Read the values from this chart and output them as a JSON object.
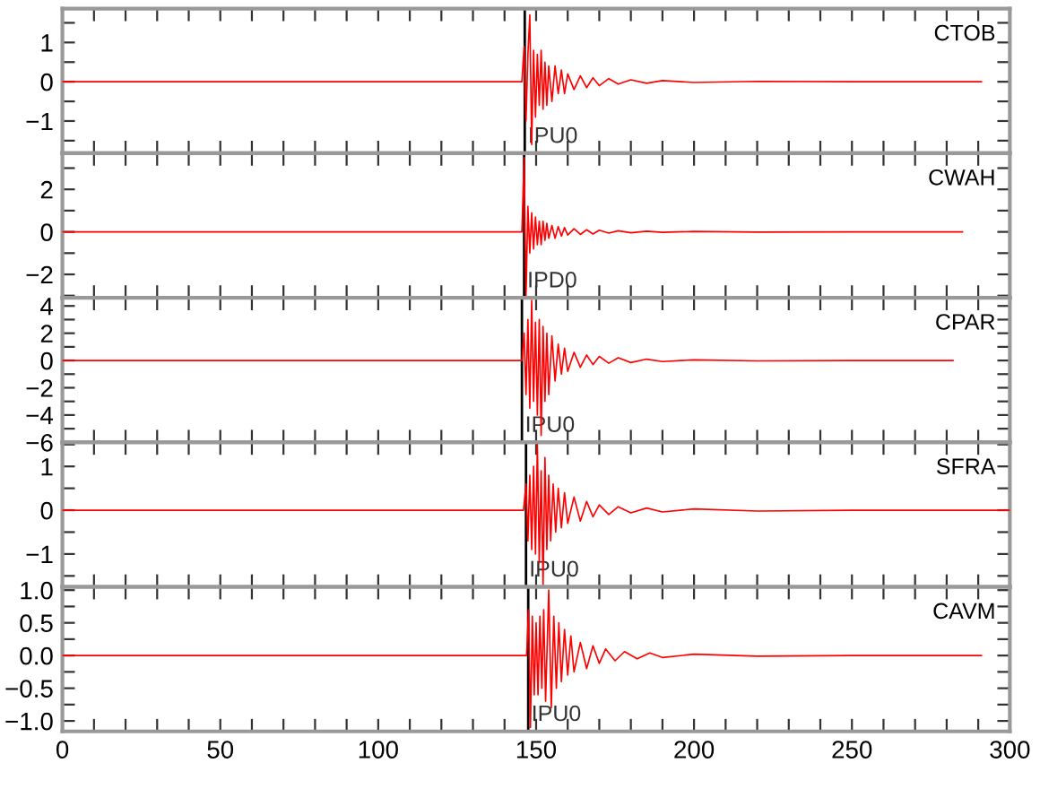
{
  "chart_data": [
    {
      "type": "line",
      "x": [
        0,
        30,
        60,
        90,
        120,
        145.5,
        146.2,
        146.8,
        147.4,
        148,
        148.6,
        149.2,
        149.8,
        150.4,
        151,
        151.6,
        152.2,
        152.8,
        153.4,
        154,
        155,
        156,
        157,
        158,
        159,
        160,
        162,
        164,
        166,
        168,
        170,
        173,
        176,
        180,
        185,
        190,
        200,
        220,
        250,
        291
      ],
      "series": [
        {
          "color": "#ff0000",
          "values": [
            0,
            0,
            0,
            0,
            0,
            0,
            0.9,
            -1.0,
            0.7,
            1.7,
            -1.6,
            0.8,
            -0.9,
            0.7,
            -0.6,
            0.8,
            -0.7,
            0.5,
            -0.6,
            0.4,
            -0.5,
            0.4,
            -0.3,
            0.3,
            -0.3,
            0.2,
            -0.2,
            0.15,
            -0.15,
            0.1,
            -0.1,
            0.08,
            -0.06,
            0.05,
            -0.04,
            0.03,
            -0.02,
            0.01,
            0,
            0
          ]
        }
      ],
      "xlim": [
        0,
        300
      ],
      "xticks": [
        {
          "value": 0,
          "label": null
        },
        {
          "value": 10,
          "label": null
        },
        {
          "value": 20,
          "label": null
        },
        {
          "value": 30,
          "label": null
        },
        {
          "value": 40,
          "label": null
        },
        {
          "value": 50,
          "label": null
        },
        {
          "value": 60,
          "label": null
        },
        {
          "value": 70,
          "label": null
        },
        {
          "value": 80,
          "label": null
        },
        {
          "value": 90,
          "label": null
        },
        {
          "value": 100,
          "label": null
        },
        {
          "value": 110,
          "label": null
        },
        {
          "value": 120,
          "label": null
        },
        {
          "value": 130,
          "label": null
        },
        {
          "value": 140,
          "label": null
        },
        {
          "value": 150,
          "label": null
        },
        {
          "value": 160,
          "label": null
        },
        {
          "value": 170,
          "label": null
        },
        {
          "value": 180,
          "label": null
        },
        {
          "value": 190,
          "label": null
        },
        {
          "value": 200,
          "label": null
        },
        {
          "value": 210,
          "label": null
        },
        {
          "value": 220,
          "label": null
        },
        {
          "value": 230,
          "label": null
        },
        {
          "value": 240,
          "label": null
        },
        {
          "value": 250,
          "label": null
        },
        {
          "value": 260,
          "label": null
        },
        {
          "value": 270,
          "label": null
        },
        {
          "value": 280,
          "label": null
        },
        {
          "value": 290,
          "label": null
        },
        {
          "value": 300,
          "label": null
        }
      ],
      "ylim": [
        -1.82,
        1.86
      ],
      "yticks": [
        {
          "value": -1.5,
          "label": null
        },
        {
          "value": -1,
          "label": "−1"
        },
        {
          "value": -0.5,
          "label": null
        },
        0,
        {
          "value": 0.5,
          "label": null
        },
        1,
        {
          "value": 1.5,
          "label": null
        }
      ],
      "tick_labels": "y",
      "grid": false,
      "legend": false,
      "annotations": [
        "CTOB"
      ],
      "ref_lines": [
        {
          "axis": "x",
          "value": 146.4,
          "label": "IPU0",
          "color": "#000000"
        }
      ]
    },
    {
      "type": "line",
      "x": [
        0,
        30,
        60,
        90,
        120,
        145.5,
        146.2,
        146.8,
        147.4,
        148,
        148.6,
        149.2,
        149.8,
        150.4,
        151,
        151.6,
        152.2,
        152.8,
        153.4,
        154,
        155,
        156,
        157,
        158,
        159,
        160,
        162,
        164,
        166,
        168,
        170,
        173,
        176,
        180,
        185,
        190,
        200,
        220,
        250,
        285
      ],
      "series": [
        {
          "color": "#ff0000",
          "values": [
            0,
            0,
            0,
            0,
            0,
            0,
            3.5,
            -3.0,
            1.2,
            -1.0,
            0.9,
            -0.8,
            0.7,
            -0.6,
            0.5,
            -0.6,
            0.5,
            -0.4,
            0.4,
            -0.3,
            0.3,
            -0.3,
            0.25,
            -0.2,
            0.2,
            -0.15,
            0.15,
            -0.12,
            0.1,
            -0.1,
            0.08,
            -0.06,
            0.05,
            -0.04,
            0.03,
            -0.02,
            0.02,
            -0.01,
            0,
            0
          ]
        }
      ],
      "xlim": [
        0,
        300
      ],
      "xticks": [
        {
          "value": 0,
          "label": null
        },
        {
          "value": 10,
          "label": null
        },
        {
          "value": 20,
          "label": null
        },
        {
          "value": 30,
          "label": null
        },
        {
          "value": 40,
          "label": null
        },
        {
          "value": 50,
          "label": null
        },
        {
          "value": 60,
          "label": null
        },
        {
          "value": 70,
          "label": null
        },
        {
          "value": 80,
          "label": null
        },
        {
          "value": 90,
          "label": null
        },
        {
          "value": 100,
          "label": null
        },
        {
          "value": 110,
          "label": null
        },
        {
          "value": 120,
          "label": null
        },
        {
          "value": 130,
          "label": null
        },
        {
          "value": 140,
          "label": null
        },
        {
          "value": 150,
          "label": null
        },
        {
          "value": 160,
          "label": null
        },
        {
          "value": 170,
          "label": null
        },
        {
          "value": 180,
          "label": null
        },
        {
          "value": 190,
          "label": null
        },
        {
          "value": 200,
          "label": null
        },
        {
          "value": 210,
          "label": null
        },
        {
          "value": 220,
          "label": null
        },
        {
          "value": 230,
          "label": null
        },
        {
          "value": 240,
          "label": null
        },
        {
          "value": 250,
          "label": null
        },
        {
          "value": 260,
          "label": null
        },
        {
          "value": 270,
          "label": null
        },
        {
          "value": 280,
          "label": null
        },
        {
          "value": 290,
          "label": null
        },
        {
          "value": 300,
          "label": null
        }
      ],
      "ylim": [
        -3.1,
        3.7
      ],
      "yticks": [
        {
          "value": -3,
          "label": null
        },
        {
          "value": -2,
          "label": "−2"
        },
        {
          "value": -1,
          "label": null
        },
        0,
        {
          "value": 1,
          "label": null
        },
        2,
        {
          "value": 3,
          "label": null
        }
      ],
      "tick_labels": "y",
      "grid": false,
      "legend": false,
      "annotations": [
        "CWAH"
      ],
      "ref_lines": [
        {
          "axis": "x",
          "value": 146.2,
          "label": "IPD0",
          "color": "#000000"
        }
      ]
    },
    {
      "type": "line",
      "x": [
        0,
        30,
        60,
        90,
        120,
        145.5,
        146.2,
        146.8,
        147.4,
        148,
        148.6,
        149.2,
        149.8,
        150.4,
        151,
        151.6,
        152.2,
        152.8,
        153.4,
        154,
        155,
        156,
        157,
        158,
        159,
        160,
        162,
        164,
        166,
        168,
        170,
        173,
        176,
        180,
        185,
        190,
        200,
        220,
        250,
        282
      ],
      "series": [
        {
          "color": "#ff0000",
          "values": [
            0,
            0,
            0,
            0,
            0,
            0,
            2.0,
            -2.5,
            3.0,
            -3.5,
            4.4,
            -3.0,
            2.8,
            -4.0,
            3.0,
            -5.5,
            2.5,
            -3.0,
            2.0,
            -2.5,
            1.8,
            -1.5,
            1.2,
            -1.0,
            0.9,
            -0.8,
            0.6,
            -0.5,
            0.4,
            -0.3,
            0.3,
            -0.2,
            0.2,
            -0.15,
            0.1,
            -0.08,
            0.05,
            -0.03,
            0,
            0
          ]
        }
      ],
      "xlim": [
        0,
        300
      ],
      "xticks": [
        {
          "value": 0,
          "label": null
        },
        {
          "value": 10,
          "label": null
        },
        {
          "value": 20,
          "label": null
        },
        {
          "value": 30,
          "label": null
        },
        {
          "value": 40,
          "label": null
        },
        {
          "value": 50,
          "label": null
        },
        {
          "value": 60,
          "label": null
        },
        {
          "value": 70,
          "label": null
        },
        {
          "value": 80,
          "label": null
        },
        {
          "value": 90,
          "label": null
        },
        {
          "value": 100,
          "label": null
        },
        {
          "value": 110,
          "label": null
        },
        {
          "value": 120,
          "label": null
        },
        {
          "value": 130,
          "label": null
        },
        {
          "value": 140,
          "label": null
        },
        {
          "value": 150,
          "label": null
        },
        {
          "value": 160,
          "label": null
        },
        {
          "value": 170,
          "label": null
        },
        {
          "value": 180,
          "label": null
        },
        {
          "value": 190,
          "label": null
        },
        {
          "value": 200,
          "label": null
        },
        {
          "value": 210,
          "label": null
        },
        {
          "value": 220,
          "label": null
        },
        {
          "value": 230,
          "label": null
        },
        {
          "value": 240,
          "label": null
        },
        {
          "value": 250,
          "label": null
        },
        {
          "value": 260,
          "label": null
        },
        {
          "value": 270,
          "label": null
        },
        {
          "value": 280,
          "label": null
        },
        {
          "value": 290,
          "label": null
        },
        {
          "value": 300,
          "label": null
        }
      ],
      "ylim": [
        -6,
        4.6
      ],
      "yticks": [
        {
          "value": -6,
          "label": "−6"
        },
        {
          "value": -5,
          "label": null
        },
        {
          "value": -4,
          "label": "−4"
        },
        {
          "value": -3,
          "label": null
        },
        {
          "value": -2,
          "label": "−2"
        },
        {
          "value": -1,
          "label": null
        },
        0,
        {
          "value": 1,
          "label": null
        },
        2,
        {
          "value": 3,
          "label": null
        },
        4
      ],
      "tick_labels": "y",
      "grid": false,
      "legend": false,
      "annotations": [
        "CPAR"
      ],
      "ref_lines": [
        {
          "axis": "x",
          "value": 145.5,
          "label": "IPU0",
          "color": "#000000"
        }
      ]
    },
    {
      "type": "line",
      "x": [
        0,
        30,
        60,
        90,
        120,
        146,
        146.8,
        147.4,
        148,
        148.6,
        149.2,
        149.8,
        150.4,
        151,
        151.6,
        152.2,
        152.8,
        153.4,
        154,
        154.6,
        155.4,
        156.2,
        157,
        158,
        159,
        160,
        162,
        164,
        166,
        168,
        170,
        173,
        176,
        180,
        185,
        190,
        200,
        220,
        250,
        300
      ],
      "series": [
        {
          "color": "#ff0000",
          "values": [
            0,
            0,
            0,
            0,
            0,
            0,
            0.6,
            -0.7,
            0.8,
            -0.9,
            1.0,
            -1.0,
            1.5,
            -1.2,
            0.9,
            -1.7,
            1.2,
            -0.9,
            0.8,
            -0.7,
            0.6,
            -0.5,
            0.5,
            -0.4,
            0.4,
            -0.3,
            0.3,
            -0.25,
            0.2,
            -0.15,
            0.12,
            -0.1,
            0.08,
            -0.06,
            0.05,
            -0.04,
            0.03,
            -0.02,
            0,
            0
          ]
        }
      ],
      "xlim": [
        0,
        300
      ],
      "xticks": [
        {
          "value": 0,
          "label": null
        },
        {
          "value": 10,
          "label": null
        },
        {
          "value": 20,
          "label": null
        },
        {
          "value": 30,
          "label": null
        },
        {
          "value": 40,
          "label": null
        },
        {
          "value": 50,
          "label": null
        },
        {
          "value": 60,
          "label": null
        },
        {
          "value": 70,
          "label": null
        },
        {
          "value": 80,
          "label": null
        },
        {
          "value": 90,
          "label": null
        },
        {
          "value": 100,
          "label": null
        },
        {
          "value": 110,
          "label": null
        },
        {
          "value": 120,
          "label": null
        },
        {
          "value": 130,
          "label": null
        },
        {
          "value": 140,
          "label": null
        },
        {
          "value": 150,
          "label": null
        },
        {
          "value": 160,
          "label": null
        },
        {
          "value": 170,
          "label": null
        },
        {
          "value": 180,
          "label": null
        },
        {
          "value": 190,
          "label": null
        },
        {
          "value": 200,
          "label": null
        },
        {
          "value": 210,
          "label": null
        },
        {
          "value": 220,
          "label": null
        },
        {
          "value": 230,
          "label": null
        },
        {
          "value": 240,
          "label": null
        },
        {
          "value": 250,
          "label": null
        },
        {
          "value": 260,
          "label": null
        },
        {
          "value": 270,
          "label": null
        },
        {
          "value": 280,
          "label": null
        },
        {
          "value": 290,
          "label": null
        },
        {
          "value": 300,
          "label": null
        }
      ],
      "ylim": [
        -1.75,
        1.55
      ],
      "yticks": [
        {
          "value": -1.5,
          "label": null
        },
        {
          "value": -1,
          "label": "−1"
        },
        {
          "value": -0.5,
          "label": null
        },
        0,
        {
          "value": 0.5,
          "label": null
        },
        1,
        {
          "value": 1.5,
          "label": null
        }
      ],
      "tick_labels": "y",
      "grid": false,
      "legend": false,
      "annotations": [
        "SFRA"
      ],
      "ref_lines": [
        {
          "axis": "x",
          "value": 146.8,
          "label": "IPU0",
          "color": "#000000"
        }
      ]
    },
    {
      "type": "line",
      "x": [
        0,
        30,
        60,
        90,
        120,
        147,
        147.6,
        148.2,
        148.8,
        149.4,
        150,
        150.6,
        151.2,
        151.8,
        152.4,
        153,
        154,
        154.8,
        155.6,
        156.4,
        157.2,
        158,
        159,
        160,
        161,
        162,
        164,
        166,
        168,
        170,
        172,
        175,
        178,
        182,
        186,
        190,
        200,
        220,
        250,
        291
      ],
      "series": [
        {
          "color": "#ff0000",
          "values": [
            0,
            0,
            0,
            0,
            0,
            0,
            0.7,
            -1.1,
            0.6,
            -0.6,
            0.5,
            -0.6,
            0.6,
            -0.5,
            0.7,
            -0.7,
            1.0,
            -0.8,
            0.6,
            -0.5,
            0.5,
            -0.4,
            0.4,
            -0.3,
            0.3,
            -0.25,
            0.2,
            -0.2,
            0.15,
            -0.12,
            0.1,
            -0.08,
            0.06,
            -0.05,
            0.04,
            -0.03,
            0.02,
            -0.01,
            0,
            0
          ]
        }
      ],
      "xlim": [
        0,
        300
      ],
      "xticks": [
        0,
        {
          "value": 10,
          "label": null
        },
        {
          "value": 20,
          "label": null
        },
        {
          "value": 30,
          "label": null
        },
        {
          "value": 40,
          "label": null
        },
        50,
        {
          "value": 60,
          "label": null
        },
        {
          "value": 70,
          "label": null
        },
        {
          "value": 80,
          "label": null
        },
        {
          "value": 90,
          "label": null
        },
        100,
        {
          "value": 110,
          "label": null
        },
        {
          "value": 120,
          "label": null
        },
        {
          "value": 130,
          "label": null
        },
        {
          "value": 140,
          "label": null
        },
        150,
        {
          "value": 160,
          "label": null
        },
        {
          "value": 170,
          "label": null
        },
        {
          "value": 180,
          "label": null
        },
        {
          "value": 190,
          "label": null
        },
        200,
        {
          "value": 210,
          "label": null
        },
        {
          "value": 220,
          "label": null
        },
        {
          "value": 230,
          "label": null
        },
        {
          "value": 240,
          "label": null
        },
        250,
        {
          "value": 260,
          "label": null
        },
        {
          "value": 270,
          "label": null
        },
        {
          "value": 280,
          "label": null
        },
        {
          "value": 290,
          "label": null
        },
        300
      ],
      "ylim": [
        -1.16,
        1.05
      ],
      "yticks": [
        {
          "value": -1,
          "label": "−1.0"
        },
        {
          "value": -0.75,
          "label": null
        },
        {
          "value": -0.5,
          "label": "−0.5"
        },
        {
          "value": -0.25,
          "label": null
        },
        {
          "value": 0,
          "label": "0.0"
        },
        {
          "value": 0.25,
          "label": null
        },
        {
          "value": 0.5,
          "label": "0.5"
        },
        {
          "value": 0.75,
          "label": null
        },
        {
          "value": 1,
          "label": "1.0"
        }
      ],
      "grid": false,
      "legend": false,
      "annotations": [
        "CAVM"
      ],
      "ref_lines": [
        {
          "axis": "x",
          "value": 147.5,
          "label": "IPU0",
          "color": "#000000"
        }
      ]
    }
  ]
}
